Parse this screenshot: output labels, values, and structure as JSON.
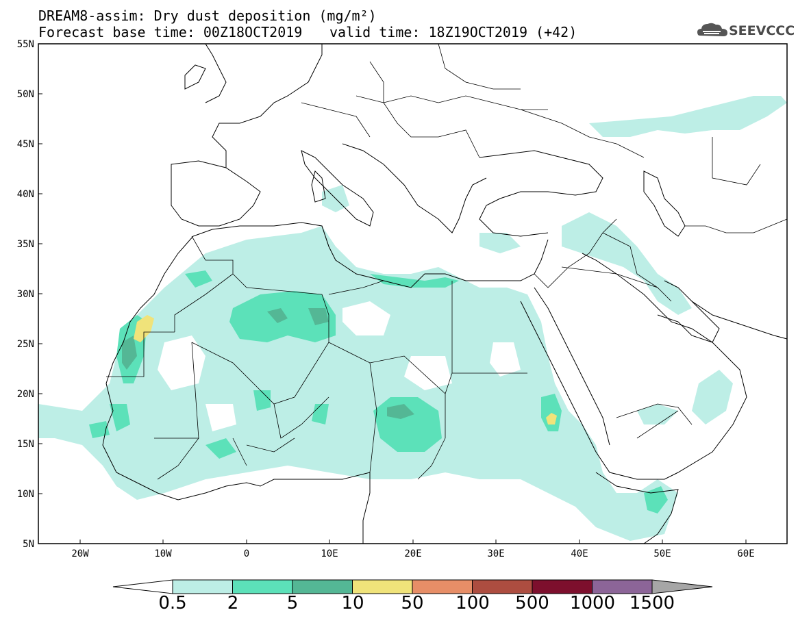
{
  "header": {
    "line1": "DREAM8-assim: Dry dust deposition (mg/m²)",
    "line2_left": "Forecast base time: 00Z18OCT2019",
    "line2_right": "valid time: 18Z19OCT2019 (+42)",
    "logo_text": "SEEVCCC"
  },
  "map": {
    "lat_labels": [
      "55N",
      "50N",
      "45N",
      "40N",
      "35N",
      "30N",
      "25N",
      "20N",
      "15N",
      "10N",
      "5N"
    ],
    "lon_labels": [
      "20W",
      "10W",
      "0",
      "10E",
      "20E",
      "30E",
      "40E",
      "50E",
      "60E"
    ],
    "extent": {
      "lon_min": -25,
      "lon_max": 65,
      "lat_min": 5,
      "lat_max": 55
    }
  },
  "colorbar": {
    "labels": [
      "0.5",
      "2",
      "5",
      "10",
      "50",
      "100",
      "500",
      "1000",
      "1500"
    ],
    "colors": [
      "#ffffff",
      "#bdeee6",
      "#5ce1b9",
      "#54b795",
      "#f0e37a",
      "#e78e67",
      "#ad4d40",
      "#7d0f2d",
      "#8c6598",
      "#a6a6a6"
    ]
  }
}
